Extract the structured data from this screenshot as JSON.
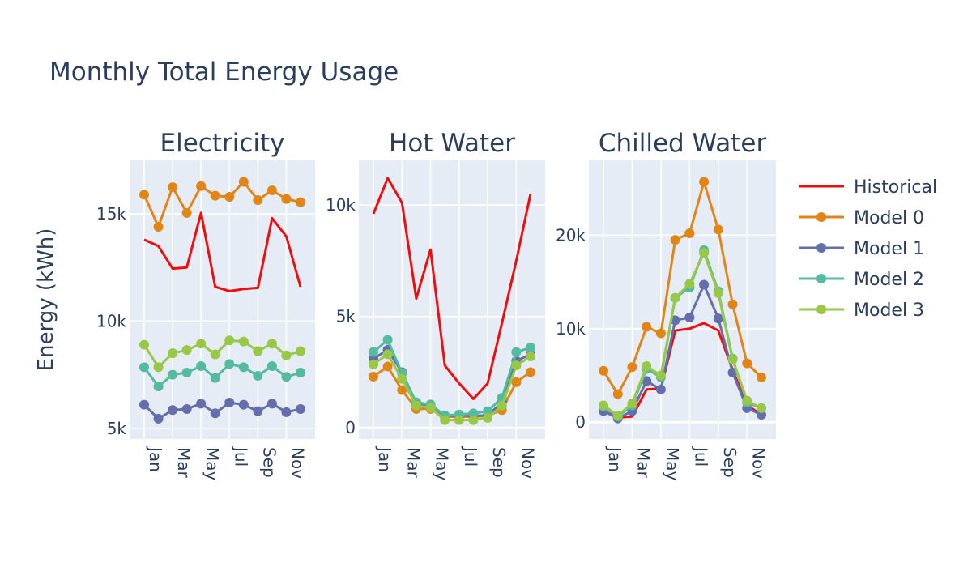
{
  "title": "Monthly Total Energy Usage",
  "ylabel": "Energy (kWh)",
  "chart_data": [
    {
      "type": "line",
      "title": "Electricity",
      "x": [
        "Jan",
        "Feb",
        "Mar",
        "Apr",
        "May",
        "Jun",
        "Jul",
        "Aug",
        "Sep",
        "Oct",
        "Nov",
        "Dec"
      ],
      "x_tick_labels": [
        "Jan",
        "Mar",
        "May",
        "Jul",
        "Sep",
        "Nov"
      ],
      "ylim": [
        4500,
        17500
      ],
      "y_ticks": [
        5000,
        10000,
        15000
      ],
      "y_tick_labels": [
        "5k",
        "10k",
        "15k"
      ],
      "grid": true,
      "series": [
        {
          "name": "Historical",
          "values": [
            13800,
            13500,
            12450,
            12500,
            15050,
            11600,
            11400,
            11500,
            11550,
            14800,
            13950,
            11600
          ]
        },
        {
          "name": "Model 0",
          "values": [
            15900,
            14400,
            16250,
            15050,
            16300,
            15850,
            15800,
            16500,
            15650,
            16100,
            15700,
            15550
          ]
        },
        {
          "name": "Model 1",
          "values": [
            6100,
            5450,
            5850,
            5900,
            6150,
            5700,
            6200,
            6100,
            5800,
            6150,
            5750,
            5900
          ]
        },
        {
          "name": "Model 2",
          "values": [
            7850,
            6950,
            7500,
            7600,
            7900,
            7350,
            8000,
            7850,
            7450,
            7900,
            7400,
            7600
          ]
        },
        {
          "name": "Model 3",
          "values": [
            8900,
            7850,
            8500,
            8650,
            8950,
            8450,
            9100,
            9050,
            8600,
            8950,
            8400,
            8600
          ]
        }
      ]
    },
    {
      "type": "line",
      "title": "Hot Water",
      "x": [
        "Jan",
        "Feb",
        "Mar",
        "Apr",
        "May",
        "Jun",
        "Jul",
        "Aug",
        "Sep",
        "Oct",
        "Nov",
        "Dec"
      ],
      "x_tick_labels": [
        "Jan",
        "Mar",
        "May",
        "Jul",
        "Sep",
        "Nov"
      ],
      "ylim": [
        -500,
        12000
      ],
      "y_ticks": [
        0,
        5000,
        10000
      ],
      "y_tick_labels": [
        "0",
        "5k",
        "10k"
      ],
      "grid": true,
      "series": [
        {
          "name": "Historical",
          "values": [
            9600,
            11200,
            10100,
            5800,
            8000,
            2800,
            2000,
            1300,
            2000,
            4700,
            7500,
            10500
          ]
        },
        {
          "name": "Model 0",
          "values": [
            2300,
            2750,
            1700,
            850,
            850,
            500,
            500,
            500,
            550,
            800,
            2050,
            2500
          ]
        },
        {
          "name": "Model 1",
          "values": [
            3100,
            3500,
            2500,
            1100,
            1000,
            550,
            550,
            550,
            550,
            1150,
            3000,
            3300
          ]
        },
        {
          "name": "Model 2",
          "values": [
            3400,
            3950,
            2450,
            1150,
            1050,
            550,
            600,
            650,
            750,
            1350,
            3400,
            3600
          ]
        },
        {
          "name": "Model 3",
          "values": [
            2850,
            3300,
            2200,
            1000,
            900,
            350,
            350,
            350,
            450,
            1000,
            2800,
            3200
          ]
        }
      ]
    },
    {
      "type": "line",
      "title": "Chilled Water",
      "x": [
        "Jan",
        "Feb",
        "Mar",
        "Apr",
        "May",
        "Jun",
        "Jul",
        "Aug",
        "Sep",
        "Oct",
        "Nov",
        "Dec"
      ],
      "x_tick_labels": [
        "Jan",
        "Mar",
        "May",
        "Jul",
        "Sep",
        "Nov"
      ],
      "ylim": [
        -1800,
        28000
      ],
      "y_ticks": [
        0,
        10000,
        20000
      ],
      "y_tick_labels": [
        "0",
        "10k",
        "20k"
      ],
      "grid": true,
      "series": [
        {
          "name": "Historical",
          "values": [
            1200,
            500,
            600,
            3500,
            3600,
            9800,
            10000,
            10600,
            9800,
            5600,
            1800,
            800
          ]
        },
        {
          "name": "Model 0",
          "values": [
            5500,
            3000,
            5900,
            10200,
            9500,
            19500,
            20200,
            25700,
            20600,
            12600,
            6300,
            4800
          ]
        },
        {
          "name": "Model 1",
          "values": [
            1200,
            400,
            1200,
            4400,
            3500,
            10900,
            11200,
            14700,
            11100,
            5300,
            1500,
            800
          ]
        },
        {
          "name": "Model 2",
          "values": [
            1700,
            600,
            1800,
            5700,
            4800,
            13300,
            14400,
            18400,
            14000,
            6800,
            2100,
            1500
          ]
        },
        {
          "name": "Model 3",
          "values": [
            1800,
            700,
            2000,
            6000,
            5000,
            13300,
            14800,
            18100,
            13800,
            6700,
            2300,
            1500
          ]
        }
      ]
    }
  ],
  "legend": {
    "placement": "right",
    "items": [
      {
        "name": "Historical",
        "color": "#f00d0d",
        "markers": false
      },
      {
        "name": "Model 0",
        "color": "#e08516",
        "markers": true
      },
      {
        "name": "Model 1",
        "color": "#646eac",
        "markers": true
      },
      {
        "name": "Model 2",
        "color": "#54bba0",
        "markers": true
      },
      {
        "name": "Model 3",
        "color": "#99c746",
        "markers": true
      }
    ]
  }
}
